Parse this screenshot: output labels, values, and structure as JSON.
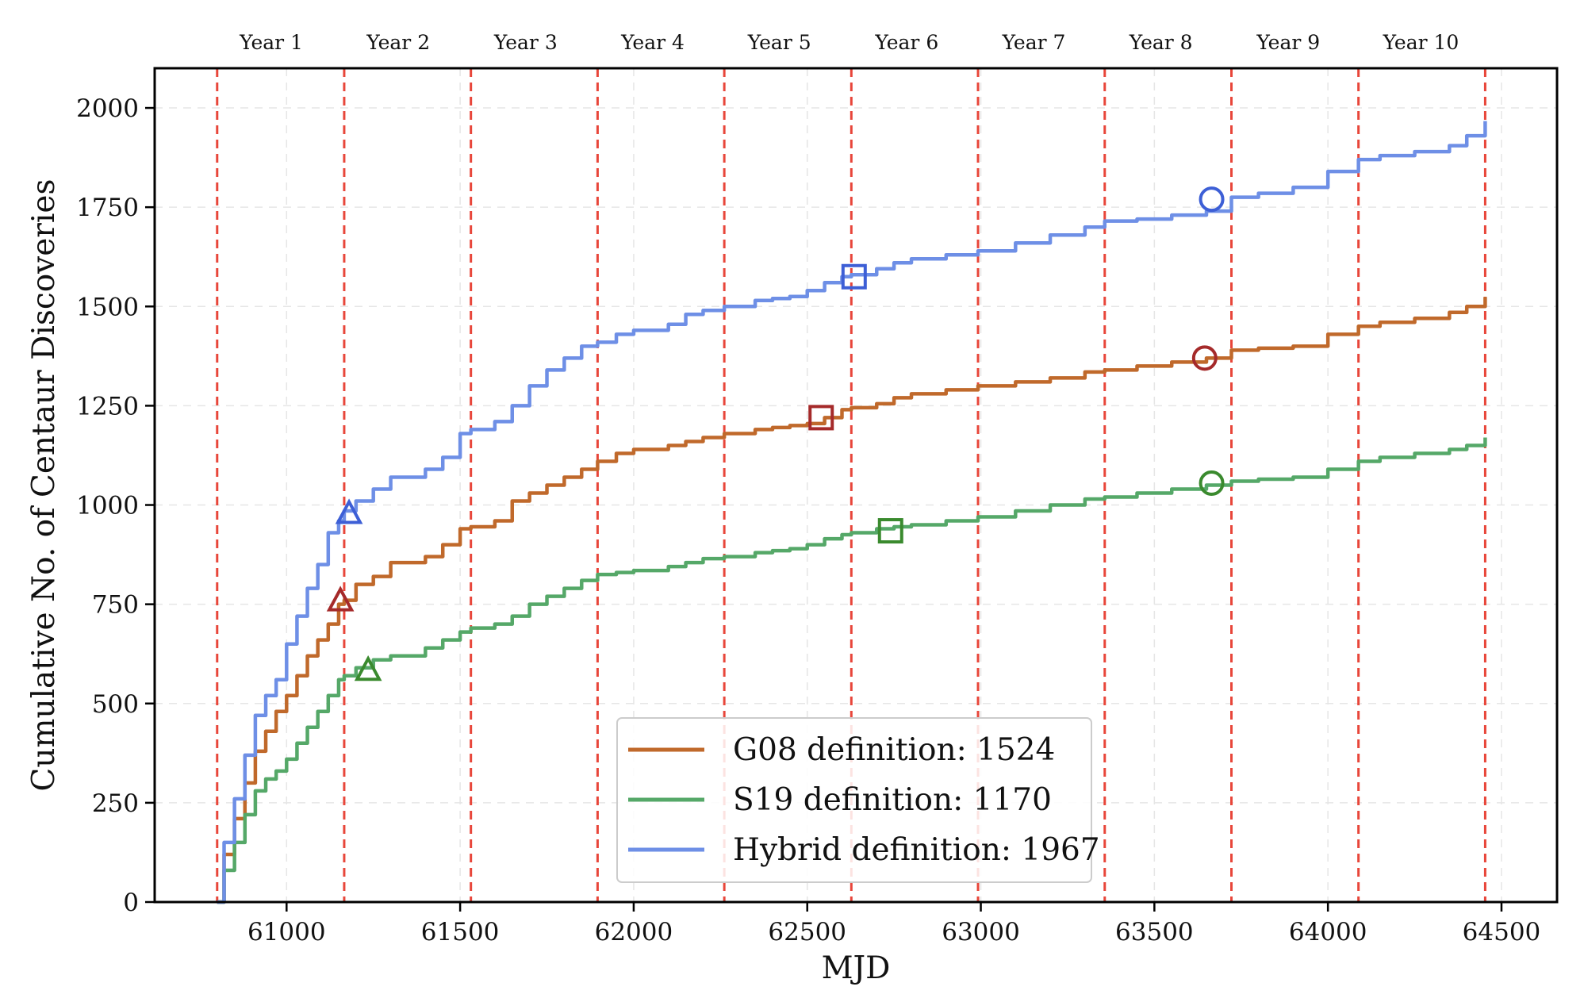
{
  "chart_data": {
    "type": "line",
    "title": "",
    "xlabel": "MJD",
    "ylabel": "Cumulative No. of Centaur Discoveries",
    "xlim": [
      60620,
      64660
    ],
    "ylim": [
      0,
      2100
    ],
    "xticks": [
      61000,
      61500,
      62000,
      62500,
      63000,
      63500,
      64000,
      64500
    ],
    "xtick_labels": [
      "61000",
      "61500",
      "62000",
      "62500",
      "63000",
      "63500",
      "64000",
      "64500"
    ],
    "yticks": [
      0,
      250,
      500,
      750,
      1000,
      1250,
      1500,
      1750,
      2000
    ],
    "ytick_labels": [
      "0",
      "250",
      "500",
      "750",
      "1000",
      "1250",
      "1500",
      "1750",
      "2000"
    ],
    "grid": true,
    "legend_position": "bottom-center",
    "year_boundaries": [
      60800,
      61166,
      61531,
      61896,
      62261,
      62627,
      62992,
      63357,
      63722,
      64088,
      64453
    ],
    "year_boundary_color": "#e8463a",
    "year_labels": [
      {
        "label": "Year 1",
        "x": 60956
      },
      {
        "label": "Year 2",
        "x": 61322
      },
      {
        "label": "Year 3",
        "x": 61689
      },
      {
        "label": "Year 4",
        "x": 62055
      },
      {
        "label": "Year 5",
        "x": 62420
      },
      {
        "label": "Year 6",
        "x": 62787
      },
      {
        "label": "Year 7",
        "x": 63153
      },
      {
        "label": "Year 8",
        "x": 63519
      },
      {
        "label": "Year 9",
        "x": 63886
      },
      {
        "label": "Year 10",
        "x": 64268
      }
    ],
    "series": [
      {
        "name": "G08 definition: 1524",
        "color": "#c0692b",
        "marker_color": "#a52a2a",
        "x": [
          60800,
          60820,
          60850,
          60880,
          60910,
          60940,
          60970,
          61000,
          61030,
          61060,
          61090,
          61120,
          61150,
          61166,
          61200,
          61250,
          61300,
          61400,
          61450,
          61500,
          61531,
          61600,
          61650,
          61700,
          61750,
          61800,
          61850,
          61896,
          61950,
          62000,
          62100,
          62150,
          62200,
          62261,
          62350,
          62400,
          62450,
          62500,
          62550,
          62600,
          62627,
          62700,
          62750,
          62800,
          62900,
          62992,
          63100,
          63200,
          63300,
          63357,
          63450,
          63550,
          63650,
          63722,
          63800,
          63900,
          64000,
          64088,
          64150,
          64250,
          64350,
          64400,
          64453
        ],
        "y": [
          0,
          120,
          210,
          300,
          380,
          430,
          480,
          520,
          570,
          620,
          660,
          700,
          750,
          760,
          800,
          820,
          855,
          870,
          900,
          940,
          945,
          960,
          1010,
          1030,
          1050,
          1070,
          1090,
          1110,
          1130,
          1140,
          1150,
          1160,
          1170,
          1180,
          1190,
          1195,
          1200,
          1205,
          1220,
          1240,
          1245,
          1255,
          1270,
          1280,
          1290,
          1300,
          1310,
          1320,
          1335,
          1340,
          1350,
          1360,
          1370,
          1390,
          1395,
          1400,
          1430,
          1450,
          1460,
          1470,
          1485,
          1500,
          1524
        ],
        "markers": [
          {
            "shape": "triangle",
            "x": 61155,
            "y": 760
          },
          {
            "shape": "square",
            "x": 62540,
            "y": 1220
          },
          {
            "shape": "circle",
            "x": 63645,
            "y": 1370
          }
        ]
      },
      {
        "name": "S19 definition: 1170",
        "color": "#55a868",
        "marker_color": "#3a8a2e",
        "x": [
          60800,
          60820,
          60850,
          60880,
          60910,
          60940,
          60970,
          61000,
          61030,
          61060,
          61090,
          61120,
          61150,
          61166,
          61200,
          61250,
          61300,
          61400,
          61450,
          61500,
          61531,
          61600,
          61650,
          61700,
          61750,
          61800,
          61850,
          61896,
          61950,
          62000,
          62100,
          62150,
          62200,
          62261,
          62350,
          62400,
          62450,
          62500,
          62550,
          62600,
          62627,
          62700,
          62750,
          62800,
          62900,
          62992,
          63100,
          63200,
          63300,
          63357,
          63450,
          63550,
          63650,
          63722,
          63800,
          63900,
          64000,
          64088,
          64150,
          64250,
          64350,
          64400,
          64453
        ],
        "y": [
          0,
          80,
          150,
          220,
          280,
          310,
          330,
          360,
          400,
          440,
          480,
          520,
          560,
          570,
          590,
          610,
          620,
          640,
          660,
          680,
          690,
          700,
          720,
          750,
          770,
          790,
          810,
          825,
          830,
          835,
          845,
          855,
          865,
          870,
          880,
          885,
          890,
          900,
          915,
          925,
          930,
          940,
          945,
          950,
          960,
          970,
          985,
          1000,
          1015,
          1020,
          1030,
          1040,
          1050,
          1060,
          1065,
          1070,
          1090,
          1110,
          1120,
          1130,
          1140,
          1150,
          1170
        ],
        "markers": [
          {
            "shape": "triangle",
            "x": 61235,
            "y": 585
          },
          {
            "shape": "square",
            "x": 62740,
            "y": 935
          },
          {
            "shape": "circle",
            "x": 63665,
            "y": 1055
          }
        ]
      },
      {
        "name": "Hybrid definition: 1967",
        "color": "#6e8fe6",
        "marker_color": "#3d5fd6",
        "x": [
          60800,
          60820,
          60850,
          60880,
          60910,
          60940,
          60970,
          61000,
          61030,
          61060,
          61090,
          61120,
          61150,
          61166,
          61200,
          61250,
          61300,
          61400,
          61450,
          61500,
          61531,
          61600,
          61650,
          61700,
          61750,
          61800,
          61850,
          61896,
          61950,
          62000,
          62100,
          62150,
          62200,
          62261,
          62350,
          62400,
          62450,
          62500,
          62550,
          62600,
          62627,
          62700,
          62750,
          62800,
          62900,
          62992,
          63100,
          63200,
          63300,
          63357,
          63450,
          63550,
          63650,
          63722,
          63800,
          63900,
          64000,
          64088,
          64150,
          64250,
          64350,
          64400,
          64453
        ],
        "y": [
          0,
          150,
          260,
          370,
          470,
          520,
          560,
          650,
          720,
          790,
          850,
          930,
          960,
          985,
          1010,
          1040,
          1070,
          1090,
          1120,
          1180,
          1190,
          1210,
          1250,
          1300,
          1340,
          1370,
          1400,
          1410,
          1430,
          1440,
          1455,
          1480,
          1490,
          1500,
          1515,
          1520,
          1525,
          1540,
          1560,
          1575,
          1580,
          1595,
          1610,
          1620,
          1630,
          1640,
          1660,
          1680,
          1700,
          1715,
          1720,
          1730,
          1740,
          1775,
          1785,
          1800,
          1840,
          1870,
          1880,
          1890,
          1905,
          1930,
          1967
        ],
        "markers": [
          {
            "shape": "triangle",
            "x": 61180,
            "y": 980
          },
          {
            "shape": "square",
            "x": 62635,
            "y": 1575
          },
          {
            "shape": "circle",
            "x": 63665,
            "y": 1770
          }
        ]
      }
    ]
  }
}
